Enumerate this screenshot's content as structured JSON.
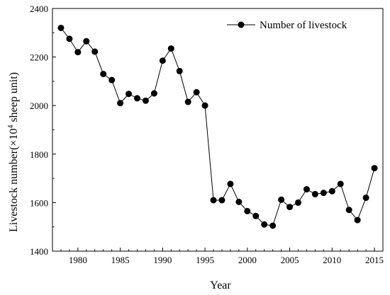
{
  "chart_data": {
    "type": "line",
    "xlabel": "Year",
    "ylabel_prefix": "Livestock number(×10",
    "ylabel_sup": "4",
    "ylabel_suffix": " sheep unit)",
    "xlim": [
      1977,
      2016
    ],
    "ylim": [
      1400,
      2400
    ],
    "xticks": [
      1980,
      1985,
      1990,
      1995,
      2000,
      2005,
      2010,
      2015
    ],
    "yticks": [
      1400,
      1600,
      1800,
      2000,
      2200,
      2400
    ],
    "legend": {
      "placement": "top-right"
    },
    "grid": false,
    "series": [
      {
        "name": "Number of  livestock",
        "color": "#000000",
        "marker": "circle",
        "x": [
          1978,
          1979,
          1980,
          1981,
          1982,
          1983,
          1984,
          1985,
          1986,
          1987,
          1988,
          1989,
          1990,
          1991,
          1992,
          1993,
          1994,
          1995,
          1996,
          1997,
          1998,
          1999,
          2000,
          2001,
          2002,
          2003,
          2004,
          2005,
          2006,
          2007,
          2008,
          2009,
          2010,
          2011,
          2012,
          2013,
          2014,
          2015
        ],
        "y": [
          2320,
          2275,
          2220,
          2265,
          2222,
          2130,
          2105,
          2010,
          2048,
          2030,
          2020,
          2050,
          2185,
          2235,
          2142,
          2015,
          2055,
          2000,
          1610,
          1610,
          1677,
          1603,
          1565,
          1545,
          1510,
          1505,
          1612,
          1582,
          1600,
          1655,
          1635,
          1640,
          1647,
          1677,
          1570,
          1528,
          1620,
          1742
        ]
      }
    ]
  }
}
